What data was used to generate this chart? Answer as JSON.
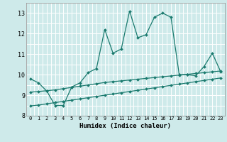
{
  "xlabel": "Humidex (Indice chaleur)",
  "x_values": [
    0,
    1,
    2,
    3,
    4,
    5,
    6,
    7,
    8,
    9,
    10,
    11,
    12,
    13,
    14,
    15,
    16,
    17,
    18,
    19,
    20,
    21,
    22,
    23
  ],
  "line1_y": [
    9.8,
    9.6,
    9.2,
    8.5,
    8.5,
    9.4,
    9.6,
    10.1,
    10.3,
    12.2,
    11.05,
    11.25,
    13.1,
    11.8,
    11.95,
    12.8,
    13.0,
    12.8,
    10.0,
    10.0,
    9.95,
    10.4,
    11.05,
    10.15
  ],
  "line2_y": [
    9.15,
    9.18,
    9.22,
    9.26,
    9.32,
    9.38,
    9.44,
    9.5,
    9.56,
    9.62,
    9.66,
    9.7,
    9.74,
    9.78,
    9.82,
    9.86,
    9.9,
    9.94,
    9.98,
    10.02,
    10.06,
    10.1,
    10.14,
    10.18
  ],
  "line3_y": [
    8.48,
    8.52,
    8.58,
    8.64,
    8.7,
    8.76,
    8.82,
    8.88,
    8.94,
    9.0,
    9.06,
    9.12,
    9.18,
    9.24,
    9.3,
    9.36,
    9.42,
    9.48,
    9.54,
    9.6,
    9.66,
    9.72,
    9.78,
    9.84
  ],
  "line_color": "#1a7a6e",
  "bg_color": "#ceeaea",
  "grid_color": "#ffffff",
  "ylim": [
    8,
    13.5
  ],
  "xlim": [
    -0.5,
    23.5
  ],
  "yticks": [
    8,
    9,
    10,
    11,
    12,
    13
  ],
  "xticks": [
    0,
    1,
    2,
    3,
    4,
    5,
    6,
    7,
    8,
    9,
    10,
    11,
    12,
    13,
    14,
    15,
    16,
    17,
    18,
    19,
    20,
    21,
    22,
    23
  ]
}
